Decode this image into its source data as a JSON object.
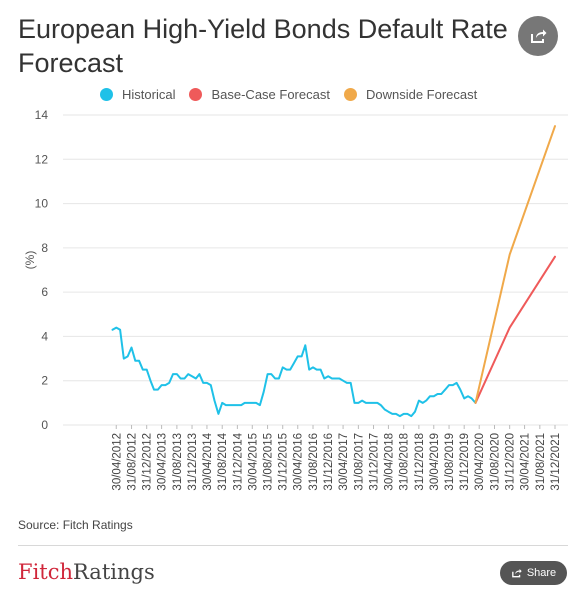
{
  "header": {
    "title": "European High-Yield Bonds Default Rate Forecast",
    "share_icon": "share-icon"
  },
  "legend": [
    {
      "label": "Historical",
      "color": "#1fc1e8"
    },
    {
      "label": "Base-Case Forecast",
      "color": "#ef5a5a"
    },
    {
      "label": "Downside Forecast",
      "color": "#f0a94a"
    }
  ],
  "chart_data": {
    "type": "line",
    "title": "European High-Yield Bonds Default Rate Forecast",
    "ylabel": "(%)",
    "ylim": [
      0,
      14
    ],
    "yticks": [
      0,
      2,
      4,
      6,
      8,
      10,
      12,
      14
    ],
    "grid": true,
    "legend_position": "top-left",
    "xticks": [
      "30/04/2012",
      "31/08/2012",
      "31/12/2012",
      "30/04/2013",
      "31/08/2013",
      "31/12/2013",
      "30/04/2014",
      "31/08/2014",
      "31/12/2014",
      "30/04/2015",
      "31/08/2015",
      "31/12/2015",
      "30/04/2016",
      "31/08/2016",
      "31/12/2016",
      "30/04/2017",
      "31/08/2017",
      "31/12/2017",
      "30/04/2018",
      "31/08/2018",
      "31/12/2018",
      "30/04/2019",
      "31/08/2019",
      "31/12/2019",
      "30/04/2020",
      "31/08/2020",
      "31/12/2020",
      "30/04/2021",
      "31/08/2021",
      "31/12/2021"
    ],
    "series": [
      {
        "name": "Historical",
        "color": "#1fc1e8",
        "x": [
          "2012-03-31",
          "2012-04-30",
          "2012-05-31",
          "2012-06-30",
          "2012-07-31",
          "2012-08-31",
          "2012-09-30",
          "2012-10-31",
          "2012-11-30",
          "2012-12-31",
          "2013-01-31",
          "2013-02-28",
          "2013-03-31",
          "2013-04-30",
          "2013-05-31",
          "2013-06-30",
          "2013-07-31",
          "2013-08-31",
          "2013-09-30",
          "2013-10-31",
          "2013-11-30",
          "2013-12-31",
          "2014-01-31",
          "2014-02-28",
          "2014-03-31",
          "2014-04-30",
          "2014-05-31",
          "2014-06-30",
          "2014-07-31",
          "2014-08-31",
          "2014-09-30",
          "2014-10-31",
          "2014-11-30",
          "2014-12-31",
          "2015-01-31",
          "2015-02-28",
          "2015-03-31",
          "2015-04-30",
          "2015-05-31",
          "2015-06-30",
          "2015-07-31",
          "2015-08-31",
          "2015-09-30",
          "2015-10-31",
          "2015-11-30",
          "2015-12-31",
          "2016-01-31",
          "2016-02-29",
          "2016-03-31",
          "2016-04-30",
          "2016-05-31",
          "2016-06-30",
          "2016-07-31",
          "2016-08-31",
          "2016-09-30",
          "2016-10-31",
          "2016-11-30",
          "2016-12-31",
          "2017-01-31",
          "2017-02-28",
          "2017-03-31",
          "2017-04-30",
          "2017-05-31",
          "2017-06-30",
          "2017-07-31",
          "2017-08-31",
          "2017-09-30",
          "2017-10-31",
          "2017-11-30",
          "2017-12-31",
          "2018-01-31",
          "2018-02-28",
          "2018-03-31",
          "2018-04-30",
          "2018-05-31",
          "2018-06-30",
          "2018-07-31",
          "2018-08-31",
          "2018-09-30",
          "2018-10-31",
          "2018-11-30",
          "2018-12-31",
          "2019-01-31",
          "2019-02-28",
          "2019-03-31",
          "2019-04-30",
          "2019-05-31",
          "2019-06-30",
          "2019-07-31",
          "2019-08-31",
          "2019-09-30",
          "2019-10-31",
          "2019-11-30",
          "2019-12-31",
          "2020-01-31",
          "2020-02-29",
          "2020-03-31"
        ],
        "values": [
          4.3,
          4.4,
          4.3,
          3.0,
          3.1,
          3.5,
          2.9,
          2.9,
          2.5,
          2.5,
          2.0,
          1.6,
          1.6,
          1.8,
          1.8,
          1.9,
          2.3,
          2.3,
          2.1,
          2.1,
          2.3,
          2.2,
          2.1,
          2.3,
          1.9,
          1.9,
          1.8,
          1.1,
          0.5,
          1.0,
          0.9,
          0.9,
          0.9,
          0.9,
          0.9,
          1.0,
          1.0,
          1.0,
          1.0,
          0.9,
          1.5,
          2.3,
          2.3,
          2.1,
          2.1,
          2.6,
          2.5,
          2.5,
          2.8,
          3.1,
          3.1,
          3.6,
          2.5,
          2.6,
          2.5,
          2.5,
          2.1,
          2.2,
          2.1,
          2.1,
          2.1,
          2.0,
          1.9,
          1.9,
          1.0,
          1.0,
          1.1,
          1.0,
          1.0,
          1.0,
          1.0,
          0.9,
          0.7,
          0.6,
          0.5,
          0.5,
          0.4,
          0.5,
          0.5,
          0.4,
          0.6,
          1.1,
          1.0,
          1.1,
          1.3,
          1.3,
          1.4,
          1.4,
          1.6,
          1.8,
          1.8,
          1.9,
          1.6,
          1.2,
          1.3,
          1.2,
          1.0
        ]
      },
      {
        "name": "Base-Case Forecast",
        "color": "#ef5a5a",
        "x": [
          "2020-03-31",
          "2020-12-31",
          "2021-12-31"
        ],
        "values": [
          1.0,
          4.4,
          7.6
        ]
      },
      {
        "name": "Downside Forecast",
        "color": "#f0a94a",
        "x": [
          "2020-03-31",
          "2020-12-31",
          "2021-12-31"
        ],
        "values": [
          1.0,
          7.7,
          13.5
        ]
      }
    ]
  },
  "footer": {
    "source": "Source: Fitch Ratings",
    "brand_a": "Fitch",
    "brand_b": "Ratings",
    "share_label": "Share"
  }
}
